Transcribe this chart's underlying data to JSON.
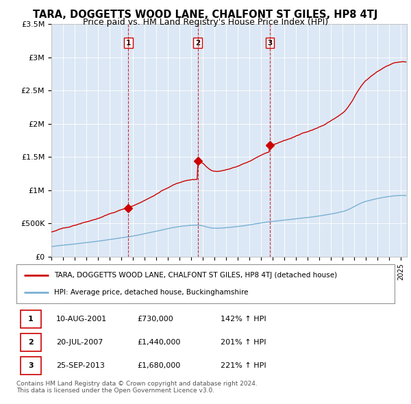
{
  "title": "TARA, DOGGETTS WOOD LANE, CHALFONT ST GILES, HP8 4TJ",
  "subtitle": "Price paid vs. HM Land Registry's House Price Index (HPI)",
  "title_fontsize": 10.5,
  "subtitle_fontsize": 9,
  "ylim": [
    0,
    3500000
  ],
  "xlim_start": 1995.0,
  "xlim_end": 2025.5,
  "yticks": [
    0,
    500000,
    1000000,
    1500000,
    2000000,
    2500000,
    3000000,
    3500000
  ],
  "ytick_labels": [
    "£0",
    "£500K",
    "£1M",
    "£1.5M",
    "£2M",
    "£2.5M",
    "£3M",
    "£3.5M"
  ],
  "sale_dates_year": [
    2001.608,
    2007.547,
    2013.731
  ],
  "sale_prices": [
    730000,
    1440000,
    1680000
  ],
  "sale_labels": [
    "1",
    "2",
    "3"
  ],
  "legend_line1": "TARA, DOGGETTS WOOD LANE, CHALFONT ST GILES, HP8 4TJ (detached house)",
  "legend_line2": "HPI: Average price, detached house, Buckinghamshire",
  "table_rows": [
    [
      "1",
      "10-AUG-2001",
      "£730,000",
      "142% ↑ HPI"
    ],
    [
      "2",
      "20-JUL-2007",
      "£1,440,000",
      "201% ↑ HPI"
    ],
    [
      "3",
      "25-SEP-2013",
      "£1,680,000",
      "221% ↑ HPI"
    ]
  ],
  "footnote1": "Contains HM Land Registry data © Crown copyright and database right 2024.",
  "footnote2": "This data is licensed under the Open Government Licence v3.0.",
  "property_color": "#cc0000",
  "hpi_color": "#7ab0d4",
  "dashed_color": "#cc0000",
  "background_color": "#ffffff",
  "plot_bg_color": "#dce8f5",
  "grid_color": "#ffffff"
}
